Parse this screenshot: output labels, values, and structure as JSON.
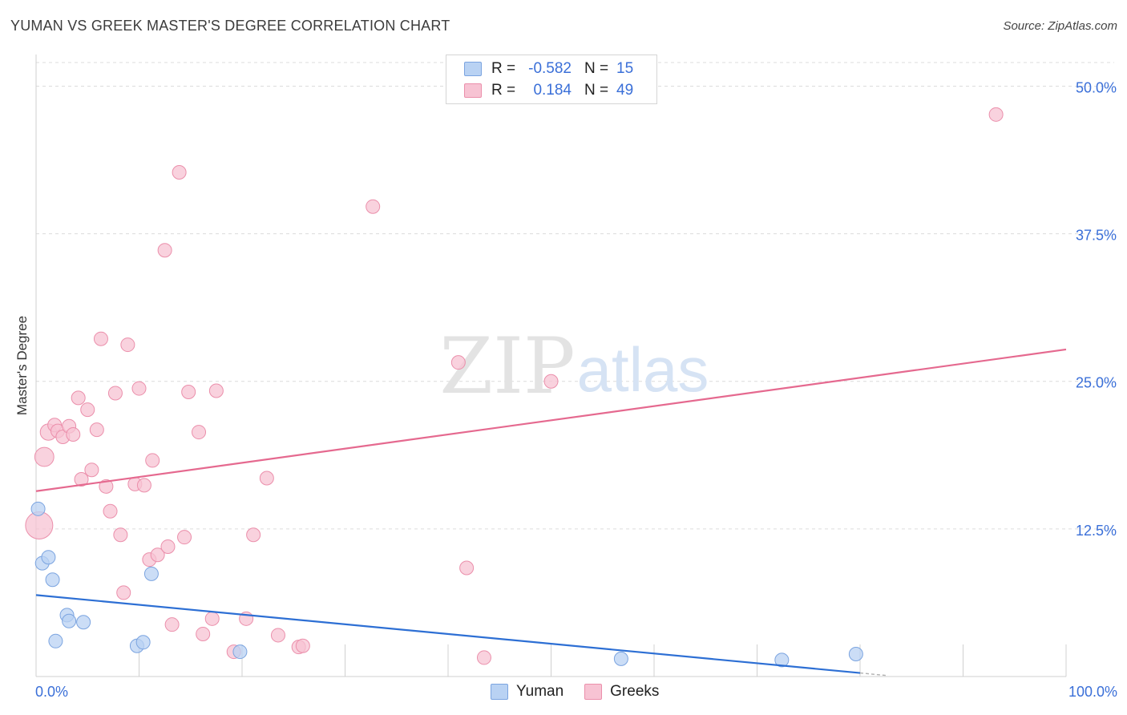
{
  "header": {
    "title": "YUMAN VS GREEK MASTER'S DEGREE CORRELATION CHART",
    "source": "Source: ZipAtlas.com"
  },
  "watermark": {
    "zip": "ZIP",
    "atlas": "atlas"
  },
  "legend": {
    "rows": [
      {
        "r_label": "R =",
        "r_value": "-0.582",
        "n_label": "N =",
        "n_value": "15"
      },
      {
        "r_label": "R =",
        "r_value": "0.184",
        "n_label": "N =",
        "n_value": "49"
      }
    ]
  },
  "bottom_legend": {
    "yuman": "Yuman",
    "greeks": "Greeks"
  },
  "colors": {
    "yuman_fill": "#b9d2f3",
    "yuman_stroke": "#7ba4e0",
    "yuman_line": "#2d6fd4",
    "greeks_fill": "#f7c3d3",
    "greeks_stroke": "#eb8fab",
    "greeks_line": "#e5698f",
    "tick_label": "#3a6fd8"
  },
  "chart_data": {
    "type": "scatter",
    "title": "YUMAN VS GREEK MASTER'S DEGREE CORRELATION CHART",
    "xlabel": "",
    "ylabel": "Master's Degree",
    "xlim": [
      0,
      100
    ],
    "ylim": [
      0,
      52
    ],
    "x_tick_labels": [
      "0.0%",
      "100.0%"
    ],
    "y_ticks": [
      12.5,
      25.0,
      37.5,
      50.0
    ],
    "y_tick_labels": [
      "12.5%",
      "25.0%",
      "37.5%",
      "50.0%"
    ],
    "grid": true,
    "series": [
      {
        "name": "Yuman",
        "r": -0.582,
        "n": 15,
        "trend": {
          "x": [
            0,
            80
          ],
          "y": [
            6.9,
            0.3
          ]
        },
        "points": [
          {
            "x": 0.2,
            "y": 14.2,
            "s": 1
          },
          {
            "x": 0.6,
            "y": 9.6,
            "s": 1
          },
          {
            "x": 1.2,
            "y": 10.1,
            "s": 1
          },
          {
            "x": 1.6,
            "y": 8.2,
            "s": 1
          },
          {
            "x": 1.9,
            "y": 3.0,
            "s": 1
          },
          {
            "x": 3.0,
            "y": 5.2,
            "s": 1
          },
          {
            "x": 3.2,
            "y": 4.7,
            "s": 1
          },
          {
            "x": 4.6,
            "y": 4.6,
            "s": 1
          },
          {
            "x": 9.8,
            "y": 2.6,
            "s": 1
          },
          {
            "x": 10.4,
            "y": 2.9,
            "s": 1
          },
          {
            "x": 11.2,
            "y": 8.7,
            "s": 1
          },
          {
            "x": 19.8,
            "y": 2.1,
            "s": 1
          },
          {
            "x": 56.8,
            "y": 1.5,
            "s": 1
          },
          {
            "x": 72.4,
            "y": 1.4,
            "s": 1
          },
          {
            "x": 79.6,
            "y": 1.9,
            "s": 1
          }
        ]
      },
      {
        "name": "Greeks",
        "r": 0.184,
        "n": 49,
        "trend": {
          "x": [
            0,
            100
          ],
          "y": [
            15.7,
            27.7
          ]
        },
        "points": [
          {
            "x": 0.3,
            "y": 12.8,
            "s": 2
          },
          {
            "x": 0.8,
            "y": 18.6,
            "s": 1.4
          },
          {
            "x": 1.2,
            "y": 20.7,
            "s": 1.2
          },
          {
            "x": 1.8,
            "y": 21.3,
            "s": 1
          },
          {
            "x": 2.1,
            "y": 20.8,
            "s": 1
          },
          {
            "x": 2.6,
            "y": 20.3,
            "s": 1
          },
          {
            "x": 3.2,
            "y": 21.2,
            "s": 1
          },
          {
            "x": 3.6,
            "y": 20.5,
            "s": 1
          },
          {
            "x": 4.1,
            "y": 23.6,
            "s": 1
          },
          {
            "x": 4.4,
            "y": 16.7,
            "s": 1
          },
          {
            "x": 5.0,
            "y": 22.6,
            "s": 1
          },
          {
            "x": 5.4,
            "y": 17.5,
            "s": 1
          },
          {
            "x": 5.9,
            "y": 20.9,
            "s": 1
          },
          {
            "x": 6.3,
            "y": 28.6,
            "s": 1
          },
          {
            "x": 6.8,
            "y": 16.1,
            "s": 1
          },
          {
            "x": 7.2,
            "y": 14.0,
            "s": 1
          },
          {
            "x": 7.7,
            "y": 24.0,
            "s": 1
          },
          {
            "x": 8.2,
            "y": 12.0,
            "s": 1
          },
          {
            "x": 8.5,
            "y": 7.1,
            "s": 1
          },
          {
            "x": 8.9,
            "y": 28.1,
            "s": 1
          },
          {
            "x": 9.6,
            "y": 16.3,
            "s": 1
          },
          {
            "x": 10.0,
            "y": 24.4,
            "s": 1
          },
          {
            "x": 10.5,
            "y": 16.2,
            "s": 1
          },
          {
            "x": 11.0,
            "y": 9.9,
            "s": 1
          },
          {
            "x": 11.3,
            "y": 18.3,
            "s": 1
          },
          {
            "x": 11.8,
            "y": 10.3,
            "s": 1
          },
          {
            "x": 12.5,
            "y": 36.1,
            "s": 1
          },
          {
            "x": 12.8,
            "y": 11.0,
            "s": 1
          },
          {
            "x": 13.2,
            "y": 4.4,
            "s": 1
          },
          {
            "x": 13.9,
            "y": 42.7,
            "s": 1
          },
          {
            "x": 14.4,
            "y": 11.8,
            "s": 1
          },
          {
            "x": 14.8,
            "y": 24.1,
            "s": 1
          },
          {
            "x": 15.8,
            "y": 20.7,
            "s": 1
          },
          {
            "x": 16.2,
            "y": 3.6,
            "s": 1
          },
          {
            "x": 17.1,
            "y": 4.9,
            "s": 1
          },
          {
            "x": 17.5,
            "y": 24.2,
            "s": 1
          },
          {
            "x": 19.2,
            "y": 2.1,
            "s": 1
          },
          {
            "x": 20.4,
            "y": 4.9,
            "s": 1
          },
          {
            "x": 21.1,
            "y": 12.0,
            "s": 1
          },
          {
            "x": 22.4,
            "y": 16.8,
            "s": 1
          },
          {
            "x": 23.5,
            "y": 3.5,
            "s": 1
          },
          {
            "x": 25.5,
            "y": 2.5,
            "s": 1
          },
          {
            "x": 25.9,
            "y": 2.6,
            "s": 1
          },
          {
            "x": 32.7,
            "y": 39.8,
            "s": 1
          },
          {
            "x": 41.0,
            "y": 26.6,
            "s": 1
          },
          {
            "x": 41.8,
            "y": 9.2,
            "s": 1
          },
          {
            "x": 43.5,
            "y": 1.6,
            "s": 1
          },
          {
            "x": 50.0,
            "y": 25.0,
            "s": 1
          },
          {
            "x": 93.2,
            "y": 47.6,
            "s": 1
          }
        ]
      }
    ]
  }
}
